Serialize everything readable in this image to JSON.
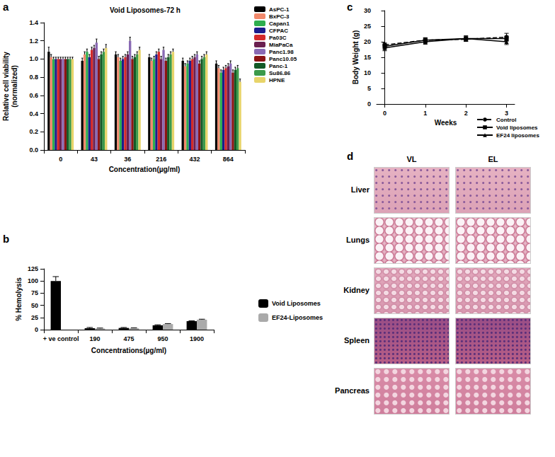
{
  "chart_data": [
    {
      "type": "bar",
      "annotations": [
        "a"
      ],
      "title": "Void Liposomes-72 h",
      "xlabel": "Concentration(µg/ml)",
      "ylabel": "Relative cell viability\n(normalized)",
      "categories": [
        "0",
        "43",
        "36",
        "216",
        "432",
        "864"
      ],
      "series": [
        {
          "name": "AsPC-1",
          "color": "#000000",
          "values": [
            1.08,
            0.98,
            1.05,
            1.02,
            0.98,
            0.95
          ],
          "errors": [
            0.05,
            0.03,
            0.03,
            0.03,
            0.03,
            0.03
          ]
        },
        {
          "name": "BxPC-3",
          "color": "#f28a6c",
          "values": [
            1.02,
            1.05,
            1.02,
            0.98,
            0.92,
            0.9
          ],
          "errors": [
            0.03,
            0.03,
            0.03,
            0.03,
            0.03,
            0.03
          ]
        },
        {
          "name": "Capan1",
          "color": "#2fae4e",
          "values": [
            1.0,
            1.08,
            0.98,
            1.0,
            0.95,
            0.85
          ],
          "errors": [
            0.02,
            0.03,
            0.03,
            0.03,
            0.03,
            0.03
          ]
        },
        {
          "name": "CFPAC",
          "color": "#1c1c8c",
          "values": [
            1.0,
            1.02,
            1.0,
            1.05,
            0.98,
            0.88
          ],
          "errors": [
            0.02,
            0.03,
            0.03,
            0.03,
            0.03,
            0.03
          ]
        },
        {
          "name": "Pa03C",
          "color": "#d42a2a",
          "values": [
            1.0,
            1.1,
            1.02,
            1.08,
            1.0,
            0.9
          ],
          "errors": [
            0.02,
            0.03,
            0.03,
            0.03,
            0.03,
            0.03
          ]
        },
        {
          "name": "MiaPaCa",
          "color": "#6b1f4f",
          "values": [
            1.0,
            1.12,
            1.05,
            1.0,
            1.02,
            0.92
          ],
          "errors": [
            0.02,
            0.03,
            0.03,
            0.03,
            0.03,
            0.03
          ]
        },
        {
          "name": "Panc1.98",
          "color": "#8a6ab4",
          "values": [
            1.0,
            1.18,
            1.2,
            1.1,
            1.05,
            0.95
          ],
          "errors": [
            0.02,
            0.04,
            0.04,
            0.03,
            0.03,
            0.03
          ]
        },
        {
          "name": "Panc10.05",
          "color": "#8c1414",
          "values": [
            1.0,
            1.0,
            1.0,
            0.98,
            0.95,
            0.85
          ],
          "errors": [
            0.02,
            0.03,
            0.03,
            0.03,
            0.03,
            0.03
          ]
        },
        {
          "name": "Panc-1",
          "color": "#135a26",
          "values": [
            1.0,
            1.05,
            1.02,
            1.02,
            1.0,
            0.88
          ],
          "errors": [
            0.02,
            0.03,
            0.03,
            0.03,
            0.03,
            0.03
          ]
        },
        {
          "name": "Su86.86",
          "color": "#3c9a4a",
          "values": [
            1.0,
            1.08,
            1.05,
            1.05,
            1.02,
            0.9
          ],
          "errors": [
            0.02,
            0.03,
            0.03,
            0.03,
            0.03,
            0.03
          ]
        },
        {
          "name": "HPNE",
          "color": "#e8d46a",
          "values": [
            1.0,
            1.12,
            1.1,
            1.08,
            1.05,
            0.75
          ],
          "errors": [
            0.02,
            0.04,
            0.03,
            0.03,
            0.03,
            0.03
          ]
        }
      ],
      "ylim": [
        0,
        1.4
      ],
      "yticks": [
        {
          "value": 0,
          "label": "0.0"
        },
        0.2,
        0.4,
        0.6,
        0.8,
        {
          "value": 1,
          "label": "1.0"
        },
        1.2,
        1.4
      ],
      "grid": false,
      "legend": "right"
    },
    {
      "type": "bar",
      "annotations": [
        "b"
      ],
      "xlabel": "Concentrations(µg/ml)",
      "ylabel": "% Hemolysis",
      "categories": [
        "+ ve control",
        "190",
        "475",
        "950",
        "1900"
      ],
      "series": [
        {
          "name": "Void Liposomes",
          "color": "#000000",
          "values": [
            100,
            3,
            3.5,
            9,
            17.5
          ],
          "errors": [
            9,
            1.5,
            1,
            1,
            0.8
          ]
        },
        {
          "name": "EF24-Liposomes",
          "color": "#aaaaaa",
          "values": [
            null,
            2.5,
            3,
            11.5,
            20.5
          ],
          "errors": [
            null,
            0.8,
            0.8,
            1,
            1
          ]
        }
      ],
      "ylim": [
        0,
        125
      ],
      "yticks": [
        0,
        25,
        50,
        75,
        100,
        125
      ],
      "grid": false,
      "legend": "right"
    },
    {
      "type": "line",
      "annotations": [
        "c"
      ],
      "xlabel": "Weeks",
      "ylabel": "Body Weight (g)",
      "x": [
        0,
        1,
        2,
        3
      ],
      "series": [
        {
          "name": "Control",
          "color": "#000000",
          "marker": "circle",
          "line_style": "dashed",
          "values": [
            19,
            20.5,
            20.8,
            21.5
          ],
          "errors": [
            0.6,
            0.7,
            0.7,
            1.2
          ]
        },
        {
          "name": "Void liposomes",
          "color": "#000000",
          "marker": "square",
          "line_style": "solid",
          "values": [
            18.5,
            20.5,
            21,
            21
          ],
          "errors": [
            0.8,
            0.8,
            0.8,
            0.8
          ]
        },
        {
          "name": "EF24 liposomes",
          "color": "#000000",
          "marker": "triangle",
          "line_style": "solid",
          "values": [
            18,
            20,
            21,
            20
          ],
          "errors": [
            0.9,
            0.8,
            0.9,
            0.9
          ]
        }
      ],
      "xlim": [
        -0.2,
        3.2
      ],
      "xticks": [
        0,
        1,
        2,
        3
      ],
      "ylim": [
        0,
        30
      ],
      "yticks": [
        0,
        5,
        10,
        15,
        20,
        25,
        30
      ],
      "grid": false,
      "legend": "lower right"
    }
  ],
  "histology": {
    "panel": "d",
    "columns": [
      "VL",
      "EL"
    ],
    "rows": [
      "Liver",
      "Lungs",
      "Kidney",
      "Spleen",
      "Pancreas"
    ]
  }
}
